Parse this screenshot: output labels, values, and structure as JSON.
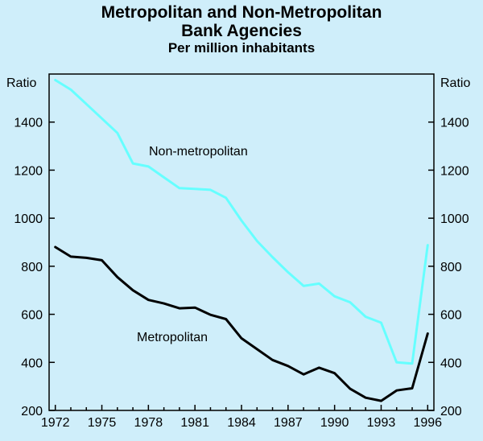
{
  "chart_data": {
    "type": "line",
    "title_line1": "Metropolitan and Non-Metropolitan",
    "title_line2": "Bank Agencies",
    "subtitle": "Per million inhabitants",
    "ylabel_left": "Ratio",
    "ylabel_right": "Ratio",
    "ylim": [
      200,
      1600
    ],
    "yticks": [
      200,
      400,
      600,
      800,
      1000,
      1200,
      1400
    ],
    "xlim": [
      1971.6,
      1996.4
    ],
    "xticks": [
      1972,
      1975,
      1978,
      1981,
      1984,
      1987,
      1990,
      1993,
      1996
    ],
    "x": [
      1972,
      1973,
      1974,
      1975,
      1976,
      1977,
      1978,
      1979,
      1980,
      1981,
      1982,
      1983,
      1984,
      1985,
      1986,
      1987,
      1988,
      1989,
      1990,
      1991,
      1992,
      1993,
      1994,
      1995,
      1996
    ],
    "series": [
      {
        "name": "Non-metropolitan",
        "label": "Non-metropolitan",
        "color": "#66ffff",
        "values": [
          1575,
          1535,
          1475,
          1415,
          1355,
          1228,
          1215,
          1170,
          1125,
          1122,
          1118,
          1085,
          990,
          905,
          838,
          775,
          718,
          728,
          675,
          650,
          590,
          565,
          400,
          395,
          888
        ]
      },
      {
        "name": "Metropolitan",
        "label": "Metropolitan",
        "color": "#000000",
        "values": [
          880,
          840,
          835,
          825,
          755,
          700,
          660,
          645,
          625,
          628,
          598,
          580,
          500,
          455,
          410,
          385,
          350,
          378,
          355,
          290,
          253,
          240,
          283,
          292,
          520
        ]
      }
    ]
  }
}
